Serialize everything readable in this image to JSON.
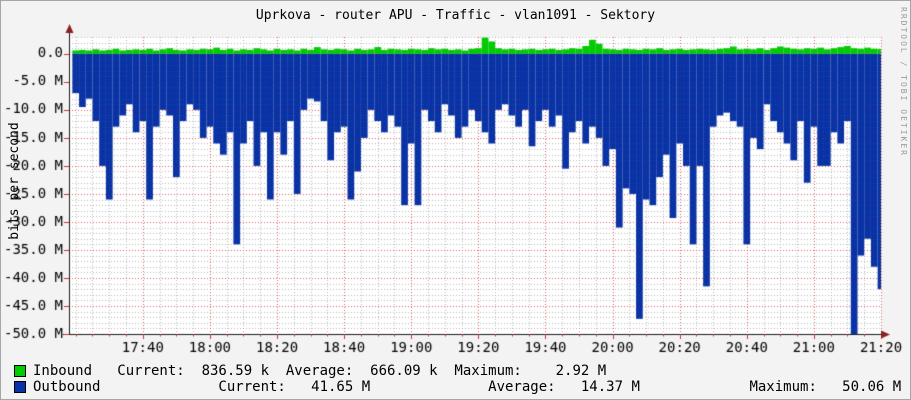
{
  "watermark": "RRDTOOL / TOBI OETIKER",
  "colors": {
    "inbound": "#00CC00",
    "outbound": "#0832A5",
    "background": "#f3f3f3",
    "plot_background": "#ffffff",
    "axis": "#1a1a1a",
    "arrow": "#8b2020",
    "tick": "#cc3333",
    "grid_major": "rgba(210,60,60,0.75)",
    "grid_minor": "rgba(150,150,150,0.55)",
    "watermark_text": "#9b9b9b"
  },
  "legend": {
    "inbound": {
      "label": "Inbound",
      "current": "836.59 k",
      "average": "666.09 k",
      "maximum": "2.92 M",
      "line": "Inbound   Current:  836.59 k  Average:  666.09 k  Maximum:    2.92 M"
    },
    "outbound": {
      "label": "Outbound",
      "current": "41.65 M",
      "average": "14.37 M",
      "maximum": "50.06 M",
      "line": "Outbound              Current:   41.65 M              Average:   14.37 M             Maximum:   50.06 M"
    }
  },
  "chart_data": {
    "type": "area",
    "title": "Uprkova - router APU - Traffic - vlan1091 - Sektory",
    "ylabel": "bits per second",
    "xlabel": "",
    "legend_position": "bottom-left",
    "grid": {
      "on": true,
      "x_minor_step": 5,
      "y_minor_step": 1,
      "y_major_step": 5
    },
    "ylim": [
      -50,
      3
    ],
    "xlim": [
      -2,
      240
    ],
    "y_unit": "Mbit/s (negative = outbound)",
    "x_unit": "minutes after 17:20",
    "y_ticks": [
      {
        "v": 0,
        "label": "0.0"
      },
      {
        "v": -5,
        "label": "-5.0 M"
      },
      {
        "v": -10,
        "label": "-10.0 M"
      },
      {
        "v": -15,
        "label": "-15.0 M"
      },
      {
        "v": -20,
        "label": "-20.0 M"
      },
      {
        "v": -25,
        "label": "-25.0 M"
      },
      {
        "v": -30,
        "label": "-30.0 M"
      },
      {
        "v": -35,
        "label": "-35.0 M"
      },
      {
        "v": -40,
        "label": "-40.0 M"
      },
      {
        "v": -45,
        "label": "-45.0 M"
      },
      {
        "v": -50,
        "label": "-50.0 M"
      }
    ],
    "x_ticks": [
      {
        "t": 20,
        "label": "17:40"
      },
      {
        "t": 40,
        "label": "18:00"
      },
      {
        "t": 60,
        "label": "18:20"
      },
      {
        "t": 80,
        "label": "18:40"
      },
      {
        "t": 100,
        "label": "19:00"
      },
      {
        "t": 120,
        "label": "19:20"
      },
      {
        "t": 140,
        "label": "19:40"
      },
      {
        "t": 160,
        "label": "20:00"
      },
      {
        "t": 180,
        "label": "20:20"
      },
      {
        "t": 200,
        "label": "20:40"
      },
      {
        "t": 220,
        "label": "21:00"
      },
      {
        "t": 240,
        "label": "21:20"
      }
    ],
    "x_start": 0,
    "x_step": 2,
    "series": [
      {
        "name": "Inbound",
        "color": "#00CC00",
        "values": [
          0.6,
          0.7,
          0.6,
          0.8,
          0.6,
          0.7,
          0.9,
          0.6,
          0.7,
          0.8,
          0.7,
          0.9,
          0.6,
          0.8,
          1.0,
          0.7,
          0.6,
          0.8,
          0.7,
          0.9,
          0.8,
          1.1,
          0.7,
          0.9,
          0.6,
          0.8,
          0.7,
          1.0,
          0.8,
          0.6,
          0.9,
          0.7,
          0.8,
          0.6,
          0.9,
          0.7,
          1.2,
          0.8,
          0.7,
          0.9,
          0.8,
          0.6,
          0.9,
          0.7,
          0.8,
          1.2,
          0.7,
          0.9,
          0.8,
          0.7,
          0.9,
          0.8,
          0.7,
          1.0,
          0.8,
          0.9,
          0.7,
          0.8,
          0.6,
          0.9,
          1.0,
          2.9,
          2.2,
          1.0,
          0.8,
          0.9,
          0.7,
          0.8,
          0.9,
          0.7,
          0.8,
          0.9,
          0.7,
          0.8,
          1.0,
          0.9,
          1.4,
          2.5,
          1.8,
          0.9,
          0.8,
          0.7,
          0.9,
          0.8,
          0.7,
          0.9,
          0.8,
          1.0,
          0.7,
          0.8,
          0.9,
          0.7,
          0.8,
          0.9,
          0.8,
          0.7,
          0.9,
          1.0,
          1.3,
          0.8,
          0.9,
          0.8,
          1.0,
          0.7,
          1.0,
          1.3,
          1.1,
          0.9,
          0.8,
          1.0,
          0.9,
          1.1,
          0.8,
          1.0,
          1.2,
          1.4,
          1.0,
          0.9,
          1.1,
          0.9,
          0.84
        ]
      },
      {
        "name": "Outbound",
        "color": "#0832A5",
        "values": [
          -7,
          -9.5,
          -8,
          -12,
          -20,
          -26,
          -13,
          -11,
          -9,
          -14,
          -12,
          -26,
          -13,
          -10,
          -11,
          -22,
          -12,
          -9,
          -10,
          -15,
          -13,
          -16,
          -18,
          -14,
          -34,
          -16,
          -12,
          -20,
          -14,
          -26,
          -14,
          -18,
          -12,
          -25,
          -10,
          -8,
          -8.5,
          -12,
          -19,
          -14,
          -13,
          -26,
          -21,
          -15,
          -10,
          -12,
          -14,
          -11,
          -13,
          -27,
          -16,
          -27,
          -10,
          -12,
          -14,
          -9,
          -11,
          -15,
          -13,
          -10,
          -12,
          -14,
          -16,
          -10,
          -9,
          -11,
          -13,
          -10,
          -16.5,
          -12,
          -10,
          -13,
          -11,
          -20.5,
          -14,
          -12,
          -16,
          -13,
          -15,
          -20,
          -17,
          -31,
          -24,
          -25,
          -47.3,
          -26,
          -27,
          -22,
          -18,
          -29.3,
          -16,
          -20,
          -34,
          -20,
          -41.5,
          -13,
          -11,
          -10.5,
          -12,
          -13,
          -34,
          -15,
          -17,
          -9,
          -12,
          -14,
          -16,
          -19,
          -12,
          -23,
          -13,
          -20,
          -20,
          -14,
          -16,
          -12,
          -50,
          -36,
          -33,
          -38,
          -42
        ]
      }
    ]
  }
}
